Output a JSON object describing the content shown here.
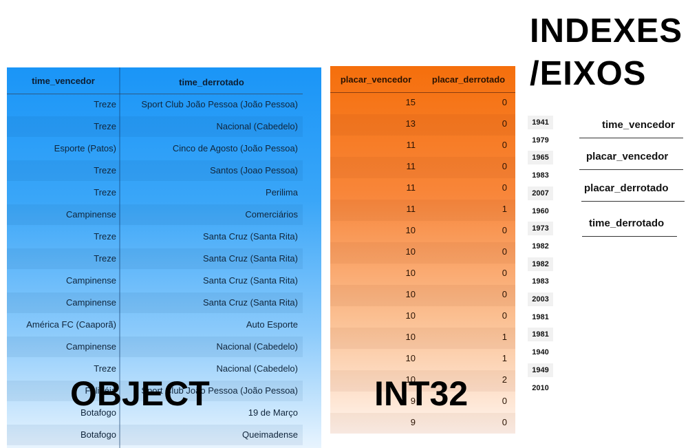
{
  "labels": {
    "object": "OBJECT",
    "int32": "INT32",
    "indexes_line1": "INDEXES",
    "indexes_line2": "/EIXOS"
  },
  "object_table": {
    "headers": [
      "time_vencedor",
      "time_derrotado"
    ],
    "rows": [
      [
        "Treze",
        "Sport Club João Pessoa (João Pessoa)"
      ],
      [
        "Treze",
        "Nacional (Cabedelo)"
      ],
      [
        "Esporte (Patos)",
        "Cinco de Agosto (João Pessoa)"
      ],
      [
        "Treze",
        "Santos (Joao Pessoa)"
      ],
      [
        "Treze",
        "Perilima"
      ],
      [
        "Campinense",
        "Comerciários"
      ],
      [
        "Treze",
        "Santa Cruz (Santa Rita)"
      ],
      [
        "Treze",
        "Santa Cruz (Santa Rita)"
      ],
      [
        "Campinense",
        "Santa Cruz (Santa Rita)"
      ],
      [
        "Campinense",
        "Santa Cruz (Santa Rita)"
      ],
      [
        "América FC (Caaporã)",
        "Auto Esporte"
      ],
      [
        "Campinense",
        "Nacional (Cabedelo)"
      ],
      [
        "Treze",
        "Nacional (Cabedelo)"
      ],
      [
        "Felipéia",
        "Sport Club João Pessoa (João Pessoa)"
      ],
      [
        "Botafogo",
        "19 de Março"
      ],
      [
        "Botafogo",
        "Queimadense"
      ]
    ]
  },
  "int_table": {
    "headers": [
      "placar_vencedor",
      "placar_derrotado"
    ],
    "rows": [
      [
        "15",
        "0"
      ],
      [
        "13",
        "0"
      ],
      [
        "11",
        "0"
      ],
      [
        "11",
        "0"
      ],
      [
        "11",
        "0"
      ],
      [
        "11",
        "1"
      ],
      [
        "10",
        "0"
      ],
      [
        "10",
        "0"
      ],
      [
        "10",
        "0"
      ],
      [
        "10",
        "0"
      ],
      [
        "10",
        "0"
      ],
      [
        "10",
        "1"
      ],
      [
        "10",
        "1"
      ],
      [
        "10",
        "2"
      ],
      [
        "9",
        "0"
      ],
      [
        "9",
        "0"
      ]
    ]
  },
  "index_values": [
    "1941",
    "1979",
    "1965",
    "1983",
    "2007",
    "1960",
    "1973",
    "1982",
    "1982",
    "1983",
    "2003",
    "1981",
    "1981",
    "1940",
    "1949",
    "2010"
  ],
  "axis_columns": [
    "time_vencedor",
    "placar_vencedor",
    "placar_derrotado",
    "time_derrotado"
  ],
  "colors": {
    "object_gradient_top": "#1a95f7",
    "int_gradient_top": "#f56f0c"
  }
}
